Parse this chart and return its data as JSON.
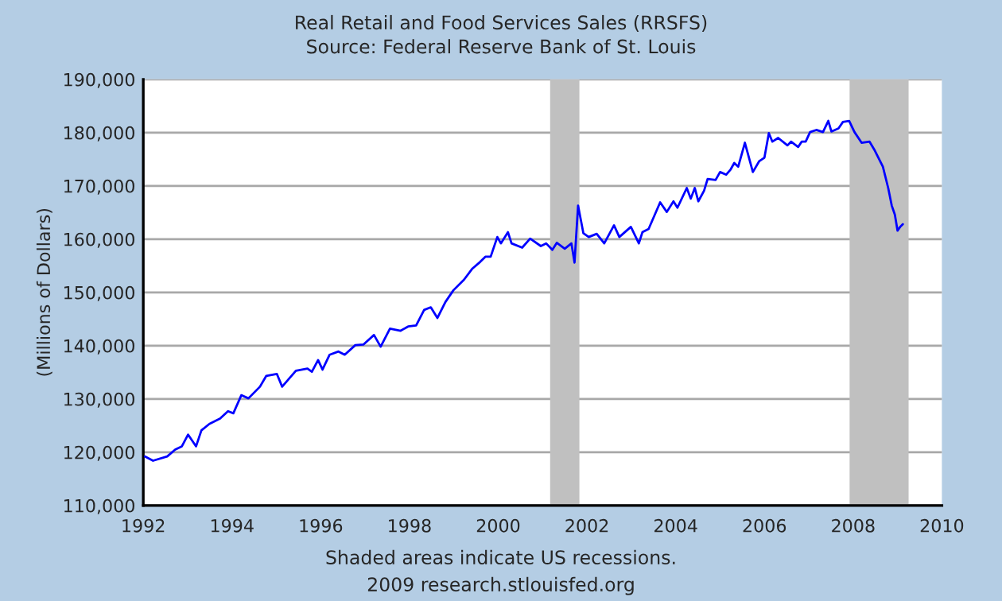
{
  "chart_data": {
    "type": "line",
    "title": "Real Retail and Food Services Sales (RRSFS)",
    "subtitle": "Source: Federal Reserve Bank of St. Louis",
    "ylabel": "(Millions of Dollars)",
    "annotations": [
      "Shaded areas indicate US recessions.",
      "2009 research.stlouisfed.org"
    ],
    "x": [
      1992.04,
      1992.22,
      1992.54,
      1992.72,
      1992.87,
      1993.01,
      1993.19,
      1993.31,
      1993.49,
      1993.73,
      1993.91,
      1994.03,
      1994.21,
      1994.37,
      1994.63,
      1994.77,
      1995.01,
      1995.13,
      1995.44,
      1995.7,
      1995.8,
      1995.94,
      1996.04,
      1996.2,
      1996.4,
      1996.54,
      1996.78,
      1996.96,
      1997.2,
      1997.35,
      1997.56,
      1997.8,
      1997.97,
      1998.15,
      1998.33,
      1998.48,
      1998.63,
      1998.81,
      1998.99,
      1999.23,
      1999.41,
      1999.59,
      1999.71,
      1999.83,
      1999.98,
      2000.06,
      2000.22,
      2000.3,
      2000.54,
      2000.72,
      2000.96,
      2001.08,
      2001.22,
      2001.32,
      2001.5,
      2001.65,
      2001.72,
      2001.8,
      2001.92,
      2002.04,
      2002.22,
      2002.39,
      2002.61,
      2002.73,
      2002.99,
      2003.17,
      2003.25,
      2003.39,
      2003.65,
      2003.8,
      2003.95,
      2004.04,
      2004.25,
      2004.34,
      2004.43,
      2004.51,
      2004.64,
      2004.72,
      2004.9,
      2005.0,
      2005.14,
      2005.24,
      2005.32,
      2005.41,
      2005.56,
      2005.74,
      2005.88,
      2006.0,
      2006.1,
      2006.18,
      2006.31,
      2006.52,
      2006.6,
      2006.76,
      2006.84,
      2006.93,
      2007.03,
      2007.17,
      2007.32,
      2007.44,
      2007.51,
      2007.67,
      2007.77,
      2007.91,
      2008.03,
      2008.19,
      2008.37,
      2008.49,
      2008.67,
      2008.79,
      2008.87,
      2008.94,
      2009.0,
      2009.06,
      2009.12
    ],
    "series": [
      {
        "color": "#0000ff",
        "values": [
          119200,
          118400,
          119200,
          120500,
          121100,
          123300,
          121100,
          124100,
          125300,
          126300,
          127700,
          127300,
          130700,
          130100,
          132300,
          134300,
          134700,
          132300,
          135300,
          135700,
          135100,
          137300,
          135500,
          138300,
          138900,
          138300,
          140100,
          140200,
          142000,
          139800,
          143200,
          142800,
          143600,
          143800,
          146700,
          147200,
          145200,
          148200,
          150400,
          152400,
          154400,
          155700,
          156700,
          156700,
          160400,
          159200,
          161300,
          159200,
          158400,
          160100,
          158700,
          159200,
          158000,
          159300,
          158200,
          159200,
          155600,
          166300,
          161100,
          160400,
          161000,
          159200,
          162600,
          160400,
          162300,
          159200,
          161300,
          161900,
          166900,
          165100,
          167100,
          165900,
          169600,
          167600,
          169600,
          167100,
          169100,
          171300,
          171100,
          172600,
          172100,
          173100,
          174300,
          173600,
          178100,
          172600,
          174600,
          175300,
          179900,
          178300,
          179000,
          177600,
          178300,
          177300,
          178300,
          178300,
          180100,
          180500,
          180100,
          182200,
          180200,
          180800,
          182000,
          182200,
          180100,
          178100,
          178300,
          176600,
          173600,
          169600,
          166300,
          164600,
          161600,
          162300,
          162800
        ]
      }
    ],
    "xlim": [
      1992,
      2010
    ],
    "xticks": [
      1992,
      1994,
      1996,
      1998,
      2000,
      2002,
      2004,
      2006,
      2008,
      2010
    ],
    "ylim": [
      110000,
      190000
    ],
    "yticks": [
      {
        "value": 110000,
        "label": "110,000"
      },
      {
        "value": 120000,
        "label": "120,000"
      },
      {
        "value": 130000,
        "label": "130,000"
      },
      {
        "value": 140000,
        "label": "140,000"
      },
      {
        "value": 150000,
        "label": "150,000"
      },
      {
        "value": 160000,
        "label": "160,000"
      },
      {
        "value": 170000,
        "label": "170,000"
      },
      {
        "value": 180000,
        "label": "180,000"
      },
      {
        "value": 190000,
        "label": "190,000"
      }
    ],
    "bands": [
      {
        "axis": "x",
        "from": 2001.17,
        "to": 2001.83,
        "color": "#c0c0c0"
      },
      {
        "axis": "x",
        "from": 2007.92,
        "to": 2009.25,
        "color": "#c0c0c0"
      }
    ],
    "grid": "y",
    "marker": "none",
    "line_style": "solid"
  }
}
